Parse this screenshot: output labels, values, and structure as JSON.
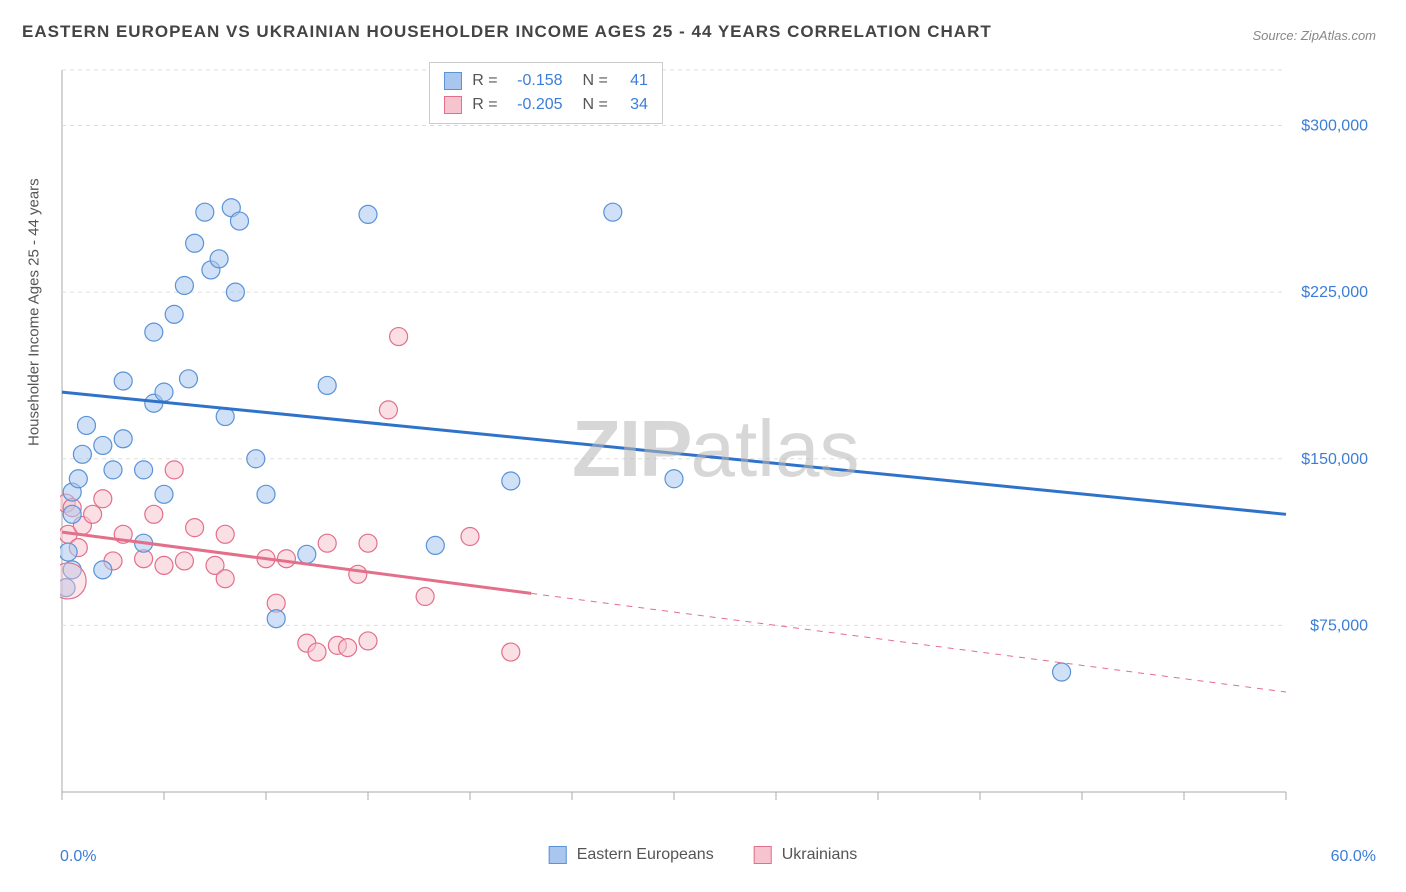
{
  "title": "EASTERN EUROPEAN VS UKRAINIAN HOUSEHOLDER INCOME AGES 25 - 44 YEARS CORRELATION CHART",
  "source": "Source: ZipAtlas.com",
  "y_axis_label": "Householder Income Ages 25 - 44 years",
  "watermark": {
    "bold": "ZIP",
    "light": "atlas"
  },
  "chart": {
    "type": "scatter",
    "background_color": "#ffffff",
    "grid_color": "#dddddd",
    "axis_color": "#aaaaaa",
    "text_color": "#555555",
    "tick_label_color": "#3b7dd8",
    "xlim": [
      0,
      60
    ],
    "ylim": [
      0,
      325000
    ],
    "x_ticks": [
      0,
      5,
      10,
      15,
      20,
      25,
      30,
      35,
      40,
      45,
      50,
      55,
      60
    ],
    "x_tick_labels": {
      "0": "0.0%",
      "60": "60.0%"
    },
    "y_ticks": [
      75000,
      150000,
      225000,
      300000
    ],
    "y_tick_labels": {
      "75000": "$75,000",
      "150000": "$150,000",
      "225000": "$225,000",
      "300000": "$300,000"
    },
    "marker_radius": 9,
    "marker_stroke_width": 1.2,
    "line_width": 3
  },
  "series": {
    "eastern_europeans": {
      "label": "Eastern Europeans",
      "fill": "#a9c7ee",
      "stroke": "#5a93d6",
      "line_color": "#2f72c9",
      "r_value": "-0.158",
      "n_value": "41",
      "points": [
        [
          0.2,
          92000
        ],
        [
          0.3,
          108000
        ],
        [
          0.5,
          100000
        ],
        [
          0.5,
          135000
        ],
        [
          0.5,
          125000
        ],
        [
          0.8,
          141000
        ],
        [
          1.0,
          152000
        ],
        [
          1.2,
          165000
        ],
        [
          2.0,
          100000
        ],
        [
          2.0,
          156000
        ],
        [
          2.5,
          145000
        ],
        [
          3.0,
          159000
        ],
        [
          3.0,
          185000
        ],
        [
          4.0,
          145000
        ],
        [
          4.0,
          112000
        ],
        [
          4.5,
          175000
        ],
        [
          4.5,
          207000
        ],
        [
          5.0,
          180000
        ],
        [
          5.0,
          134000
        ],
        [
          5.5,
          215000
        ],
        [
          6.0,
          228000
        ],
        [
          6.2,
          186000
        ],
        [
          6.5,
          247000
        ],
        [
          7.0,
          261000
        ],
        [
          7.3,
          235000
        ],
        [
          7.7,
          240000
        ],
        [
          8.0,
          169000
        ],
        [
          8.3,
          263000
        ],
        [
          8.5,
          225000
        ],
        [
          8.7,
          257000
        ],
        [
          9.5,
          150000
        ],
        [
          10.0,
          134000
        ],
        [
          10.5,
          78000
        ],
        [
          12.0,
          107000
        ],
        [
          13.0,
          183000
        ],
        [
          15.0,
          260000
        ],
        [
          18.3,
          111000
        ],
        [
          22.0,
          140000
        ],
        [
          27.0,
          261000
        ],
        [
          30.0,
          141000
        ],
        [
          49.0,
          54000
        ]
      ],
      "regression": {
        "x1": 0,
        "y1": 180000,
        "x2": 60,
        "y2": 125000,
        "solid_to_x": 60
      }
    },
    "ukrainians": {
      "label": "Ukrainians",
      "fill": "#f5c4ce",
      "stroke": "#e36f8a",
      "line_color": "#e36f8a",
      "r_value": "-0.205",
      "n_value": "34",
      "points": [
        [
          0.2,
          130000
        ],
        [
          0.3,
          116000
        ],
        [
          0.5,
          128000
        ],
        [
          0.8,
          110000
        ],
        [
          1.0,
          120000
        ],
        [
          1.5,
          125000
        ],
        [
          2.0,
          132000
        ],
        [
          2.5,
          104000
        ],
        [
          3.0,
          116000
        ],
        [
          4.0,
          105000
        ],
        [
          4.5,
          125000
        ],
        [
          5.0,
          102000
        ],
        [
          5.5,
          145000
        ],
        [
          6.0,
          104000
        ],
        [
          6.5,
          119000
        ],
        [
          7.5,
          102000
        ],
        [
          8.0,
          96000
        ],
        [
          8.0,
          116000
        ],
        [
          10.0,
          105000
        ],
        [
          10.5,
          85000
        ],
        [
          11.0,
          105000
        ],
        [
          12.0,
          67000
        ],
        [
          12.5,
          63000
        ],
        [
          13.5,
          66000
        ],
        [
          13.0,
          112000
        ],
        [
          14.0,
          65000
        ],
        [
          14.5,
          98000
        ],
        [
          15.0,
          68000
        ],
        [
          15.0,
          112000
        ],
        [
          16.0,
          172000
        ],
        [
          16.5,
          205000
        ],
        [
          17.8,
          88000
        ],
        [
          20.0,
          115000
        ],
        [
          22.0,
          63000
        ]
      ],
      "regression": {
        "x1": 0,
        "y1": 117000,
        "x2": 60,
        "y2": 45000,
        "solid_to_x": 23
      }
    }
  },
  "legend_top": {
    "r_label": "R =",
    "n_label": "N ="
  }
}
